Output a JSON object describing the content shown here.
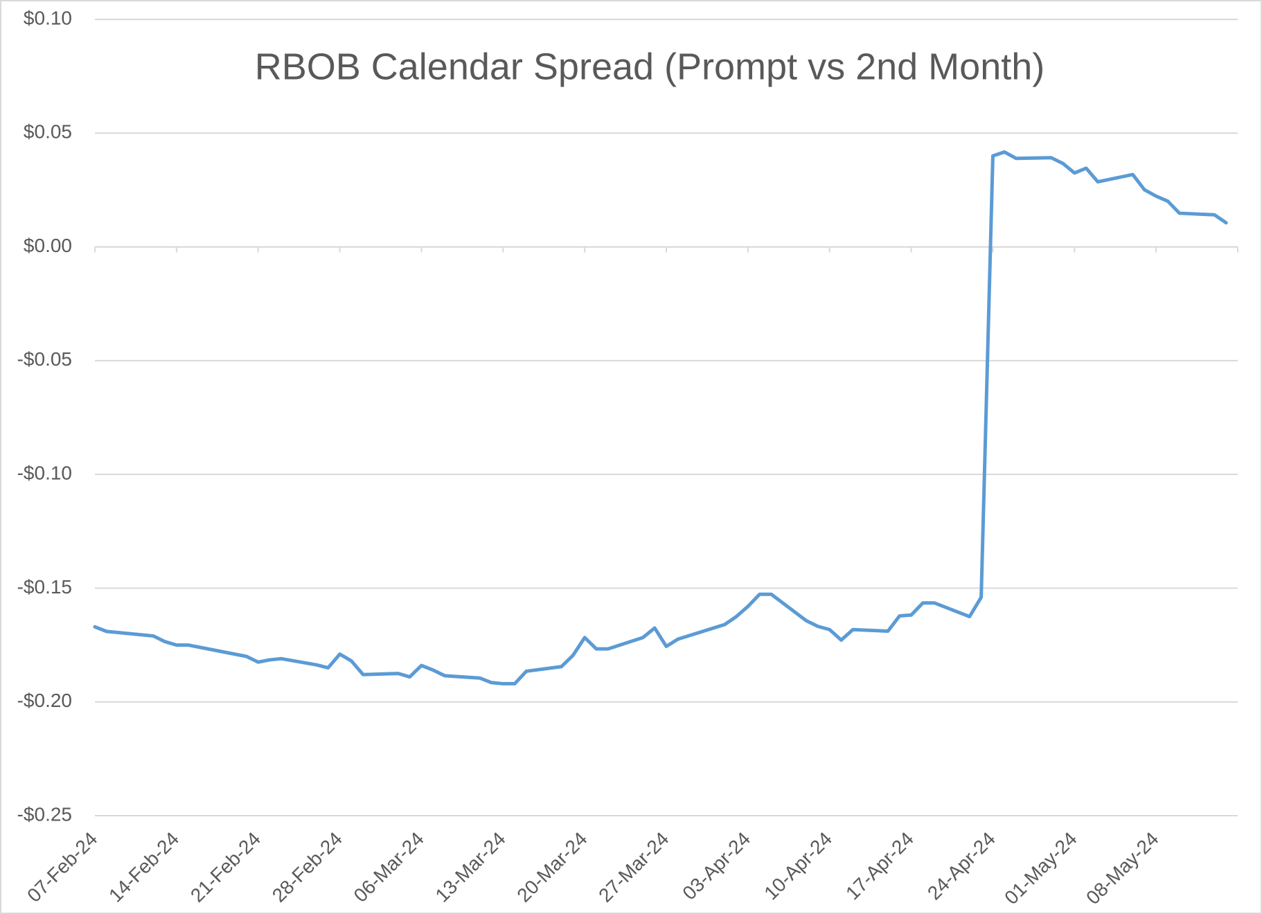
{
  "chart_data": {
    "type": "line",
    "title": "RBOB Calendar Spread (Prompt vs 2nd Month)",
    "x": [
      "2024-02-07",
      "2024-02-08",
      "2024-02-09",
      "2024-02-12",
      "2024-02-13",
      "2024-02-14",
      "2024-02-15",
      "2024-02-16",
      "2024-02-20",
      "2024-02-21",
      "2024-02-22",
      "2024-02-23",
      "2024-02-26",
      "2024-02-27",
      "2024-02-28",
      "2024-02-29",
      "2024-03-01",
      "2024-03-04",
      "2024-03-05",
      "2024-03-06",
      "2024-03-07",
      "2024-03-08",
      "2024-03-11",
      "2024-03-12",
      "2024-03-13",
      "2024-03-14",
      "2024-03-15",
      "2024-03-18",
      "2024-03-19",
      "2024-03-20",
      "2024-03-21",
      "2024-03-22",
      "2024-03-25",
      "2024-03-26",
      "2024-03-27",
      "2024-03-28",
      "2024-04-01",
      "2024-04-02",
      "2024-04-03",
      "2024-04-04",
      "2024-04-05",
      "2024-04-08",
      "2024-04-09",
      "2024-04-10",
      "2024-04-11",
      "2024-04-12",
      "2024-04-15",
      "2024-04-16",
      "2024-04-17",
      "2024-04-18",
      "2024-04-19",
      "2024-04-22",
      "2024-04-23",
      "2024-04-24",
      "2024-04-25",
      "2024-04-26",
      "2024-04-29",
      "2024-04-30",
      "2024-05-01",
      "2024-05-02",
      "2024-05-03",
      "2024-05-06",
      "2024-05-07",
      "2024-05-08",
      "2024-05-09",
      "2024-05-10",
      "2024-05-13",
      "2024-05-14"
    ],
    "values": [
      -0.167,
      -0.169,
      -0.1695,
      -0.171,
      -0.1735,
      -0.175,
      -0.175,
      -0.176,
      -0.18,
      -0.1825,
      -0.1815,
      -0.181,
      -0.1837,
      -0.185,
      -0.179,
      -0.182,
      -0.188,
      -0.1875,
      -0.189,
      -0.184,
      -0.186,
      -0.1885,
      -0.1895,
      -0.1915,
      -0.192,
      -0.192,
      -0.1865,
      -0.1845,
      -0.1795,
      -0.1717,
      -0.1767,
      -0.1767,
      -0.1717,
      -0.1675,
      -0.1756,
      -0.1724,
      -0.166,
      -0.1625,
      -0.158,
      -0.1527,
      -0.1527,
      -0.1643,
      -0.1668,
      -0.1682,
      -0.1728,
      -0.1682,
      -0.1689,
      -0.1622,
      -0.1618,
      -0.1565,
      -0.1565,
      -0.1625,
      -0.154,
      0.04,
      0.0417,
      0.0389,
      0.0392,
      0.0367,
      0.0325,
      0.0346,
      0.0286,
      0.0318,
      0.0251,
      0.0223,
      0.0201,
      0.0148,
      0.0141,
      0.0106
    ],
    "color": "#5b9bd5",
    "xlim": [
      "2024-02-07",
      "2024-05-15"
    ],
    "xticks": [
      {
        "value": "2024-02-07",
        "label": "07-Feb-24"
      },
      {
        "value": "2024-02-14",
        "label": "14-Feb-24"
      },
      {
        "value": "2024-02-21",
        "label": "21-Feb-24"
      },
      {
        "value": "2024-02-28",
        "label": "28-Feb-24"
      },
      {
        "value": "2024-03-06",
        "label": "06-Mar-24"
      },
      {
        "value": "2024-03-13",
        "label": "13-Mar-24"
      },
      {
        "value": "2024-03-20",
        "label": "20-Mar-24"
      },
      {
        "value": "2024-03-27",
        "label": "27-Mar-24"
      },
      {
        "value": "2024-04-03",
        "label": "03-Apr-24"
      },
      {
        "value": "2024-04-10",
        "label": "10-Apr-24"
      },
      {
        "value": "2024-04-17",
        "label": "17-Apr-24"
      },
      {
        "value": "2024-04-24",
        "label": "24-Apr-24"
      },
      {
        "value": "2024-05-01",
        "label": "01-May-24"
      },
      {
        "value": "2024-05-08",
        "label": "08-May-24"
      }
    ],
    "ylim": [
      -0.25,
      0.1
    ],
    "yticks": [
      {
        "value": -0.25,
        "label": "-$0.25"
      },
      {
        "value": -0.2,
        "label": "-$0.20"
      },
      {
        "value": -0.15,
        "label": "-$0.15"
      },
      {
        "value": -0.1,
        "label": "-$0.10"
      },
      {
        "value": -0.05,
        "label": "-$0.05"
      },
      {
        "value": 0,
        "label": "$0.00"
      },
      {
        "value": 0.05,
        "label": "$0.05"
      },
      {
        "value": 0.1,
        "label": "$0.10"
      }
    ],
    "grid": true
  }
}
